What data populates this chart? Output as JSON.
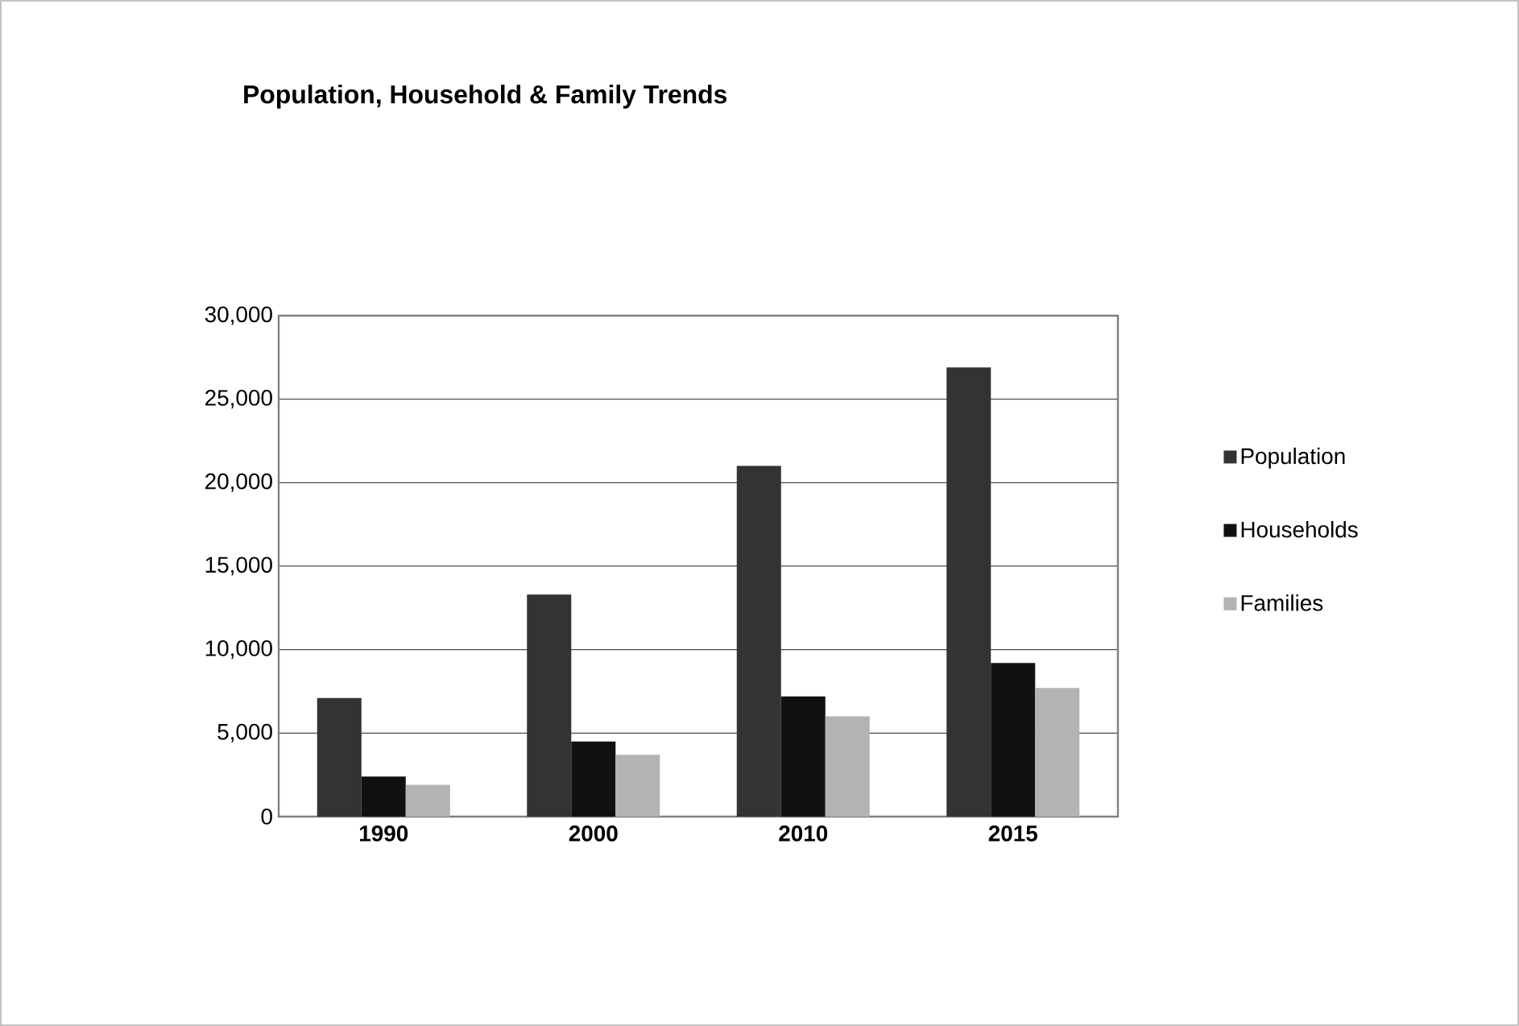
{
  "chart_data": {
    "type": "bar",
    "title": "Population, Household & Family Trends",
    "categories": [
      "1990",
      "2000",
      "2010",
      "2015"
    ],
    "series": [
      {
        "name": "Population",
        "color": "#333333",
        "values": [
          7100,
          13300,
          21000,
          26900
        ]
      },
      {
        "name": "Households",
        "color": "#111111",
        "values": [
          2400,
          4500,
          7200,
          9200
        ]
      },
      {
        "name": "Families",
        "color": "#b3b3b3",
        "values": [
          1900,
          3700,
          6000,
          7700
        ]
      }
    ],
    "ylim": [
      0,
      30000
    ],
    "yticks": [
      {
        "value": 0,
        "label": "0"
      },
      {
        "value": 5000,
        "label": "5,000"
      },
      {
        "value": 10000,
        "label": "10,000"
      },
      {
        "value": 15000,
        "label": "15,000"
      },
      {
        "value": 20000,
        "label": "20,000"
      },
      {
        "value": 25000,
        "label": "25,000"
      },
      {
        "value": 30000,
        "label": "30,000"
      }
    ],
    "grid": "y",
    "legend": "right"
  }
}
